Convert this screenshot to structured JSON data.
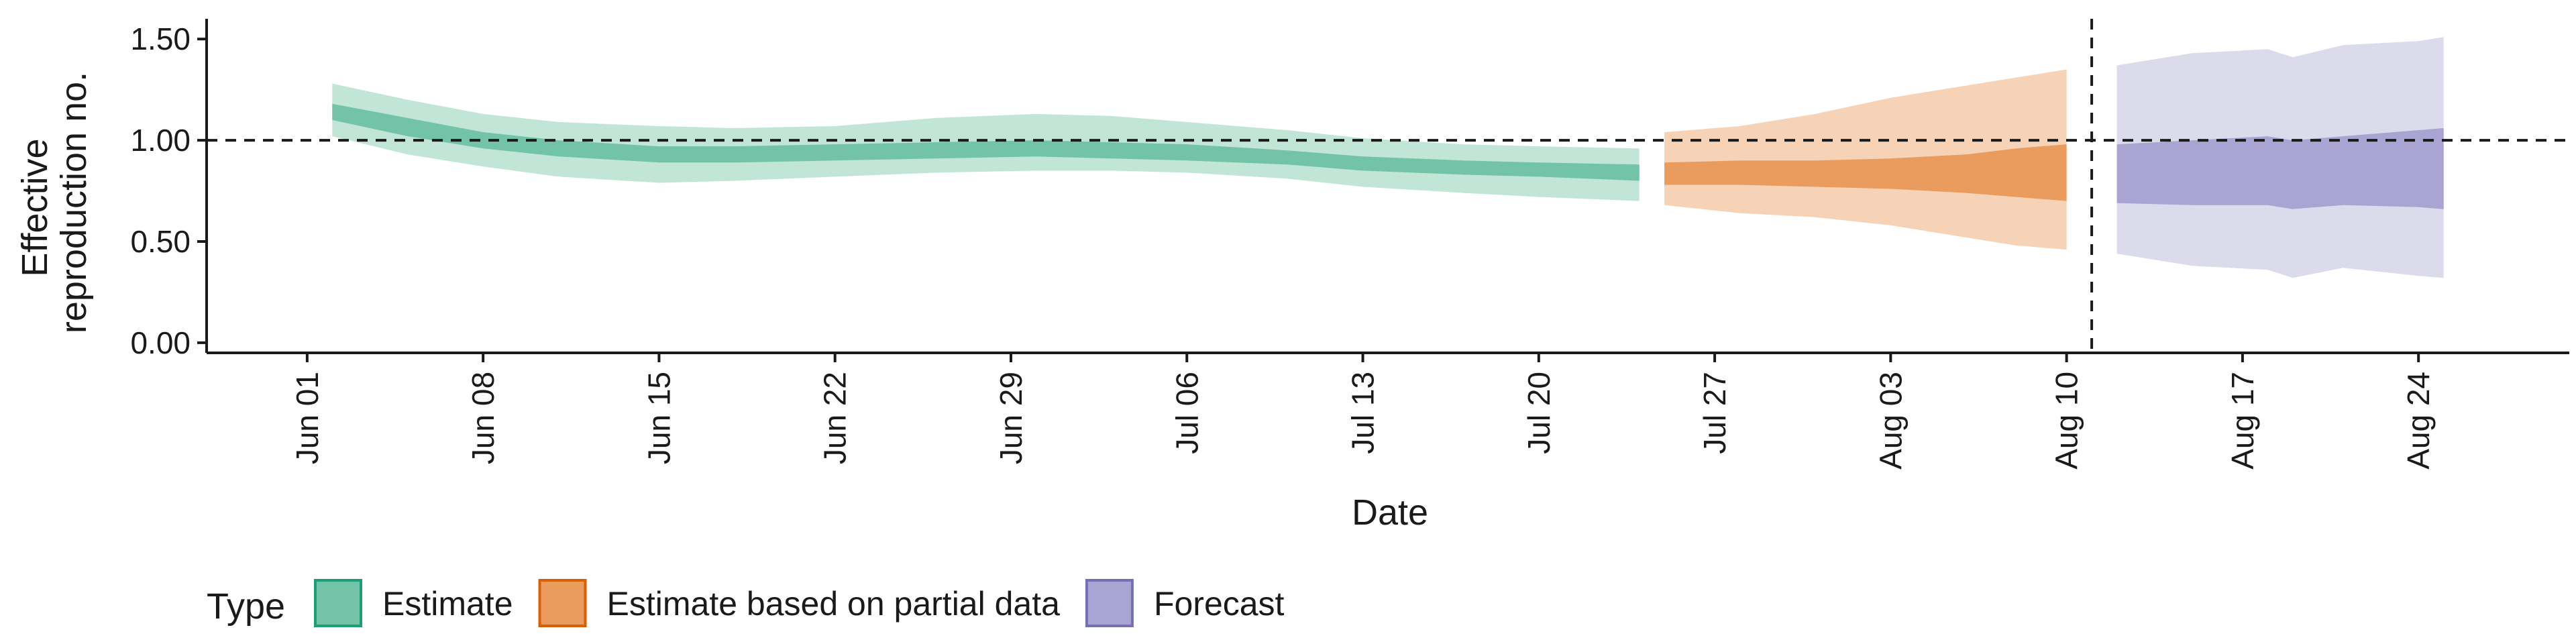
{
  "chart_data": {
    "type": "area",
    "xlabel": "Date",
    "ylabel_lines": [
      "Effective",
      "reproduction no."
    ],
    "x_range": [
      "2020-05-28",
      "2020-08-30"
    ],
    "ylim": [
      -0.05,
      1.6
    ],
    "y_ticks": [
      0,
      0.5,
      1,
      1.5
    ],
    "y_tick_labels": [
      "0.00",
      "0.50",
      "1.00",
      "1.50"
    ],
    "x_ticks": [
      "2020-06-01",
      "2020-06-08",
      "2020-06-15",
      "2020-06-22",
      "2020-06-29",
      "2020-07-06",
      "2020-07-13",
      "2020-07-20",
      "2020-07-27",
      "2020-08-03",
      "2020-08-10",
      "2020-08-17",
      "2020-08-24"
    ],
    "x_tick_labels": [
      "Jun 01",
      "Jun 08",
      "Jun 15",
      "Jun 22",
      "Jun 29",
      "Jul 06",
      "Jul 13",
      "Jul 20",
      "Jul 27",
      "Aug 03",
      "Aug 10",
      "Aug 17",
      "Aug 24"
    ],
    "hline_y": 1.0,
    "vline_date": "2020-08-11",
    "grid": false,
    "legend": {
      "title": "Type",
      "placement": "bottom-left",
      "items": [
        {
          "label": "Estimate",
          "fill": "#72C3A7",
          "stroke": "#1B9E77"
        },
        {
          "label": "Estimate based on partial data",
          "fill": "#E99C5D",
          "stroke": "#D95F02"
        },
        {
          "label": "Forecast",
          "fill": "#A9A4D1",
          "stroke": "#7570B3"
        }
      ]
    },
    "series": [
      {
        "name": "Estimate",
        "outer_fill": "#C1E6D8",
        "inner_fill": "#72C3A7",
        "points": [
          {
            "date": "2020-06-02",
            "lo90": 1.02,
            "lo50": 1.1,
            "hi50": 1.18,
            "hi90": 1.28
          },
          {
            "date": "2020-06-05",
            "lo90": 0.93,
            "lo50": 1.02,
            "hi50": 1.11,
            "hi90": 1.2
          },
          {
            "date": "2020-06-08",
            "lo90": 0.87,
            "lo50": 0.96,
            "hi50": 1.04,
            "hi90": 1.13
          },
          {
            "date": "2020-06-11",
            "lo90": 0.82,
            "lo50": 0.92,
            "hi50": 1.0,
            "hi90": 1.09
          },
          {
            "date": "2020-06-15",
            "lo90": 0.79,
            "lo50": 0.89,
            "hi50": 0.97,
            "hi90": 1.07
          },
          {
            "date": "2020-06-18",
            "lo90": 0.8,
            "lo50": 0.89,
            "hi50": 0.97,
            "hi90": 1.06
          },
          {
            "date": "2020-06-22",
            "lo90": 0.82,
            "lo50": 0.9,
            "hi50": 0.98,
            "hi90": 1.07
          },
          {
            "date": "2020-06-26",
            "lo90": 0.84,
            "lo50": 0.91,
            "hi50": 0.99,
            "hi90": 1.11
          },
          {
            "date": "2020-06-30",
            "lo90": 0.85,
            "lo50": 0.92,
            "hi50": 1.0,
            "hi90": 1.13
          },
          {
            "date": "2020-07-03",
            "lo90": 0.85,
            "lo50": 0.91,
            "hi50": 0.99,
            "hi90": 1.12
          },
          {
            "date": "2020-07-06",
            "lo90": 0.84,
            "lo50": 0.9,
            "hi50": 0.98,
            "hi90": 1.09
          },
          {
            "date": "2020-07-10",
            "lo90": 0.81,
            "lo50": 0.88,
            "hi50": 0.95,
            "hi90": 1.05
          },
          {
            "date": "2020-07-13",
            "lo90": 0.77,
            "lo50": 0.85,
            "hi50": 0.92,
            "hi90": 1.01
          },
          {
            "date": "2020-07-17",
            "lo90": 0.74,
            "lo50": 0.83,
            "hi50": 0.9,
            "hi90": 0.98
          },
          {
            "date": "2020-07-20",
            "lo90": 0.72,
            "lo50": 0.82,
            "hi50": 0.89,
            "hi90": 0.97
          },
          {
            "date": "2020-07-24",
            "lo90": 0.7,
            "lo50": 0.8,
            "hi50": 0.88,
            "hi90": 0.96
          }
        ]
      },
      {
        "name": "Estimate based on partial data",
        "outer_fill": "#F6D3B7",
        "inner_fill": "#E99C5D",
        "points": [
          {
            "date": "2020-07-25",
            "lo90": 0.68,
            "lo50": 0.78,
            "hi50": 0.89,
            "hi90": 1.04
          },
          {
            "date": "2020-07-28",
            "lo90": 0.64,
            "lo50": 0.78,
            "hi50": 0.9,
            "hi90": 1.07
          },
          {
            "date": "2020-07-31",
            "lo90": 0.62,
            "lo50": 0.77,
            "hi50": 0.9,
            "hi90": 1.13
          },
          {
            "date": "2020-08-03",
            "lo90": 0.58,
            "lo50": 0.76,
            "hi50": 0.91,
            "hi90": 1.21
          },
          {
            "date": "2020-08-06",
            "lo90": 0.52,
            "lo50": 0.74,
            "hi50": 0.93,
            "hi90": 1.27
          },
          {
            "date": "2020-08-08",
            "lo90": 0.48,
            "lo50": 0.72,
            "hi50": 0.96,
            "hi90": 1.31
          },
          {
            "date": "2020-08-10",
            "lo90": 0.46,
            "lo50": 0.7,
            "hi50": 0.98,
            "hi90": 1.35
          }
        ]
      },
      {
        "name": "Forecast",
        "outer_fill": "#DCDBEC",
        "inner_fill": "#A9A4D1",
        "points": [
          {
            "date": "2020-08-12",
            "lo90": 0.44,
            "lo50": 0.69,
            "hi50": 0.98,
            "hi90": 1.37
          },
          {
            "date": "2020-08-15",
            "lo90": 0.38,
            "lo50": 0.68,
            "hi50": 1.0,
            "hi90": 1.43
          },
          {
            "date": "2020-08-18",
            "lo90": 0.36,
            "lo50": 0.68,
            "hi50": 1.02,
            "hi90": 1.45
          },
          {
            "date": "2020-08-19",
            "lo90": 0.32,
            "lo50": 0.66,
            "hi50": 1.0,
            "hi90": 1.41
          },
          {
            "date": "2020-08-21",
            "lo90": 0.37,
            "lo50": 0.68,
            "hi50": 1.02,
            "hi90": 1.47
          },
          {
            "date": "2020-08-24",
            "lo90": 0.33,
            "lo50": 0.67,
            "hi50": 1.05,
            "hi90": 1.49
          },
          {
            "date": "2020-08-25",
            "lo90": 0.32,
            "lo50": 0.66,
            "hi50": 1.06,
            "hi90": 1.51
          }
        ]
      }
    ]
  }
}
